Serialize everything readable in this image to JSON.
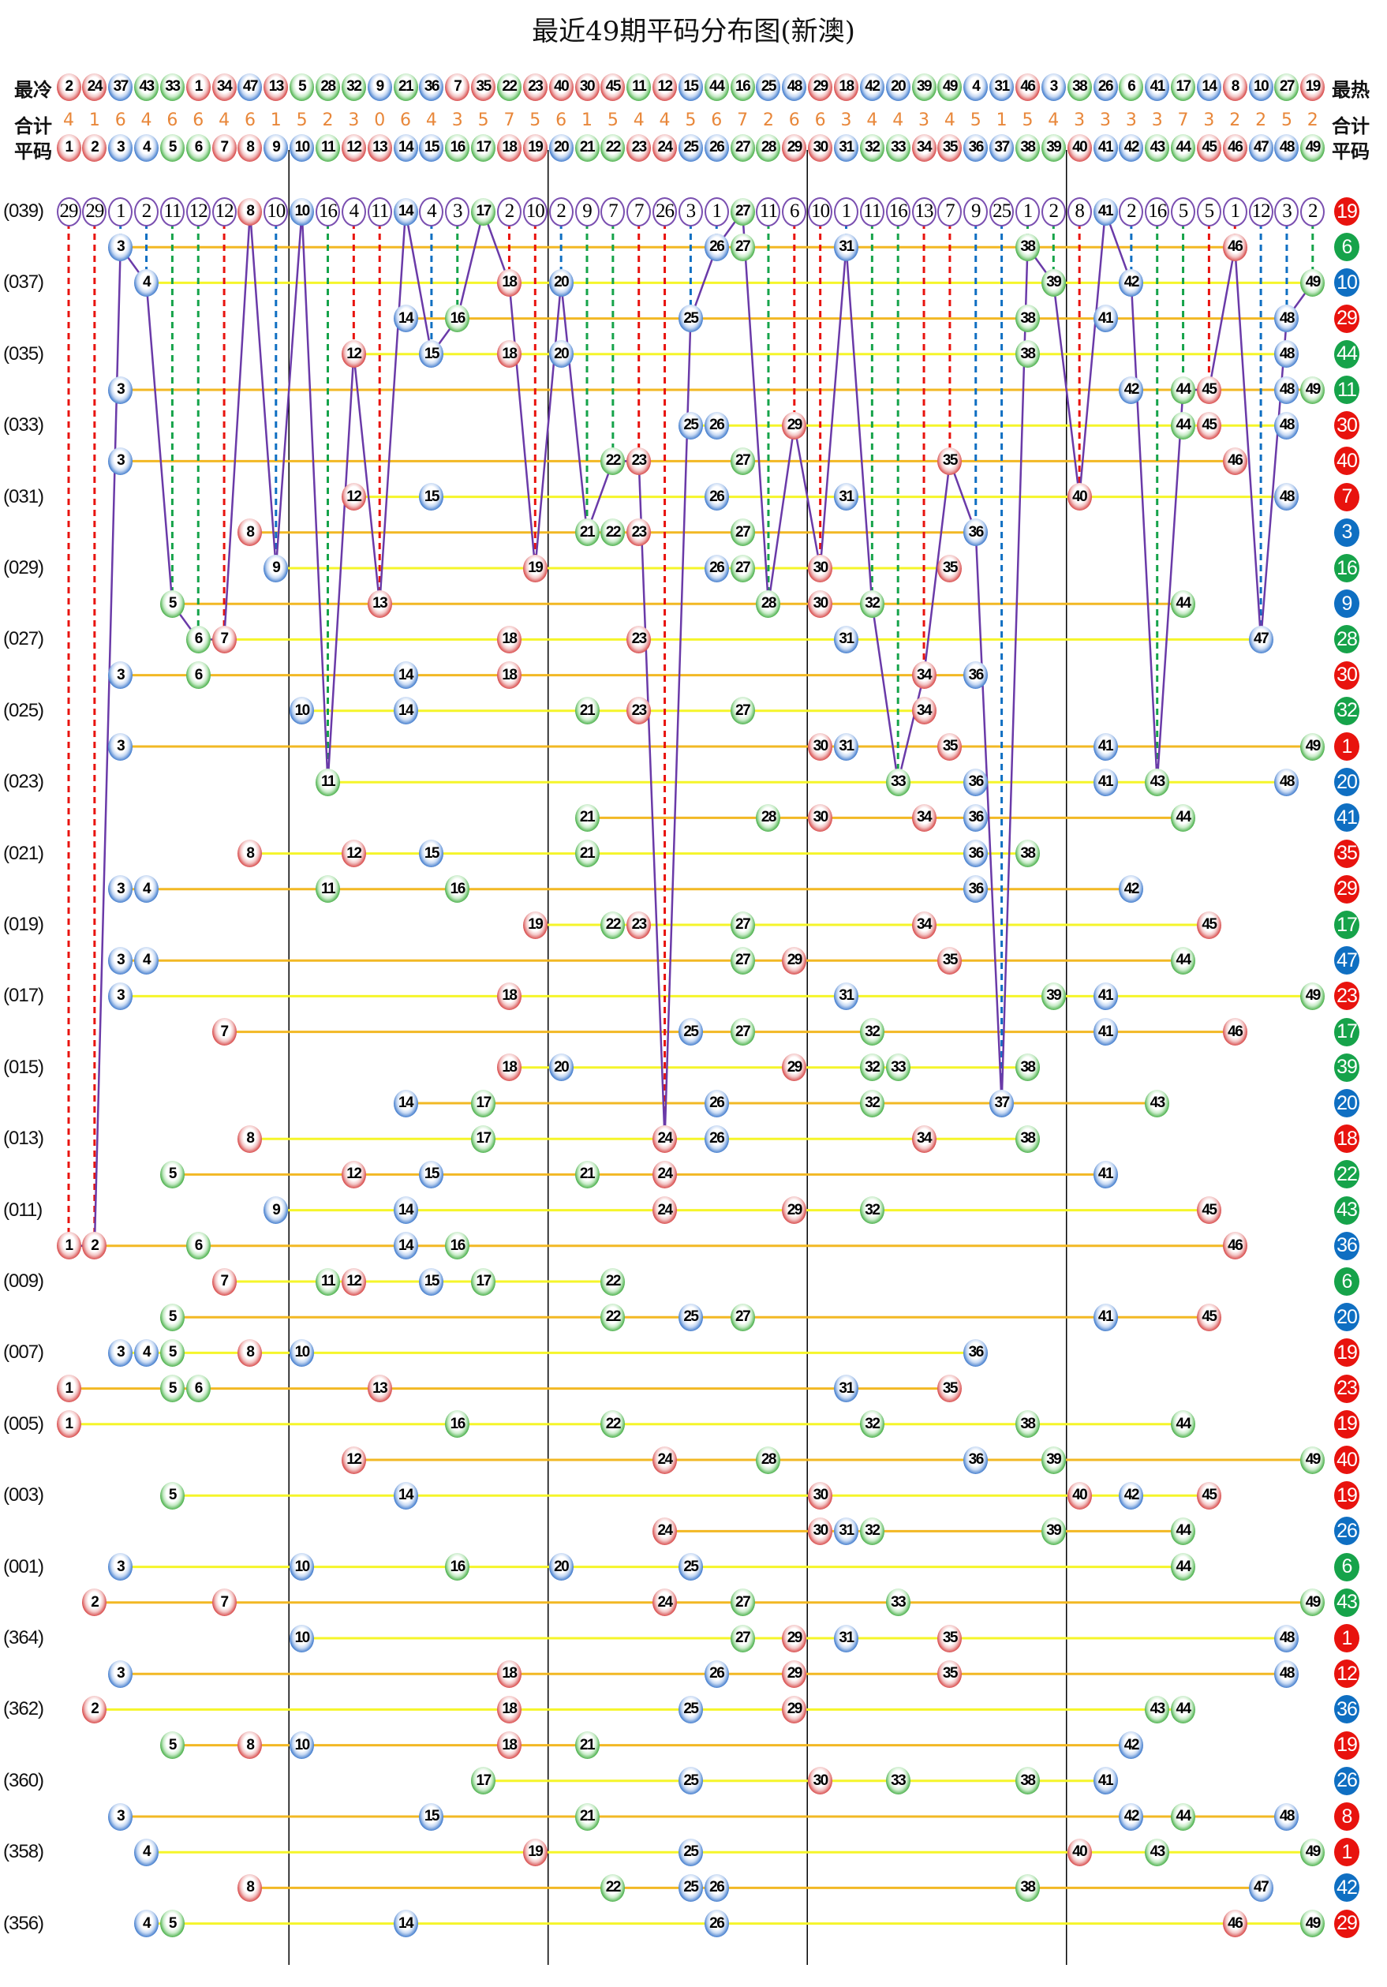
{
  "title": "最近49期平码分布图(新澳)",
  "labels": {
    "cold": "最冷",
    "hot": "最热",
    "count": "合计",
    "plain": "平码"
  },
  "colors": {
    "red": "#e8130e",
    "blue": "#0f6fc2",
    "green": "#16a34a",
    "omission_border": "#7a4fb0",
    "trend_line": "#6a3aa8",
    "row_line_a": "#f2b824",
    "row_line_b": "#f5f52a",
    "count_text": "#e8873a"
  },
  "number_colors": {
    "red": [
      1,
      2,
      7,
      8,
      12,
      13,
      18,
      19,
      23,
      24,
      29,
      30,
      34,
      35,
      40,
      45,
      46
    ],
    "blue": [
      3,
      4,
      9,
      10,
      14,
      15,
      20,
      25,
      26,
      31,
      36,
      37,
      41,
      42,
      47,
      48
    ],
    "green": [
      5,
      6,
      11,
      16,
      17,
      21,
      22,
      27,
      28,
      32,
      33,
      38,
      39,
      43,
      44,
      49
    ]
  },
  "cold_to_hot": [
    2,
    24,
    37,
    43,
    33,
    1,
    34,
    47,
    13,
    5,
    28,
    32,
    9,
    21,
    36,
    7,
    35,
    22,
    23,
    40,
    30,
    45,
    11,
    12,
    15,
    44,
    16,
    25,
    48,
    29,
    18,
    42,
    20,
    39,
    49,
    4,
    31,
    46,
    3,
    38,
    26,
    6,
    41,
    17,
    14,
    8,
    10,
    27,
    19
  ],
  "counts": [
    4,
    1,
    6,
    4,
    6,
    6,
    4,
    6,
    1,
    5,
    2,
    3,
    0,
    6,
    4,
    3,
    5,
    7,
    5,
    6,
    1,
    5,
    4,
    4,
    5,
    6,
    7,
    2,
    6,
    6,
    3,
    4,
    4,
    3,
    4,
    5,
    1,
    5,
    4,
    3,
    3,
    3,
    3,
    7,
    3,
    2,
    2,
    5,
    2
  ],
  "plain_numbers": [
    1,
    2,
    3,
    4,
    5,
    6,
    7,
    8,
    9,
    10,
    11,
    12,
    13,
    14,
    15,
    16,
    17,
    18,
    19,
    20,
    21,
    22,
    23,
    24,
    25,
    26,
    27,
    28,
    29,
    30,
    31,
    32,
    33,
    34,
    35,
    36,
    37,
    38,
    39,
    40,
    41,
    42,
    43,
    44,
    45,
    46,
    47,
    48,
    49
  ],
  "chart_data": {
    "type": "table",
    "first_row_omissions": [
      29,
      29,
      1,
      2,
      11,
      12,
      12,
      0,
      10,
      0,
      16,
      4,
      11,
      0,
      4,
      3,
      0,
      2,
      10,
      2,
      9,
      7,
      7,
      26,
      3,
      1,
      0,
      11,
      6,
      10,
      1,
      11,
      16,
      13,
      7,
      9,
      25,
      1,
      2,
      8,
      0,
      2,
      16,
      5,
      5,
      1,
      12,
      3,
      2
    ],
    "rows": [
      {
        "label": "(039)",
        "balls": [
          8,
          10,
          14,
          17,
          27,
          41
        ],
        "special": 19
      },
      {
        "label": "",
        "balls": [
          3,
          26,
          27,
          31,
          38,
          46
        ],
        "special": 6
      },
      {
        "label": "(037)",
        "balls": [
          4,
          18,
          20,
          39,
          42,
          49
        ],
        "special": 10
      },
      {
        "label": "",
        "balls": [
          14,
          16,
          25,
          38,
          41,
          48
        ],
        "special": 29
      },
      {
        "label": "(035)",
        "balls": [
          12,
          15,
          18,
          20,
          38,
          48
        ],
        "special": 44
      },
      {
        "label": "",
        "balls": [
          3,
          42,
          44,
          45,
          48,
          49
        ],
        "special": 11
      },
      {
        "label": "(033)",
        "balls": [
          25,
          26,
          29,
          44,
          45,
          48
        ],
        "special": 30
      },
      {
        "label": "",
        "balls": [
          3,
          22,
          23,
          27,
          35,
          46
        ],
        "special": 40
      },
      {
        "label": "(031)",
        "balls": [
          12,
          15,
          26,
          31,
          40,
          48
        ],
        "special": 7
      },
      {
        "label": "",
        "balls": [
          8,
          21,
          22,
          23,
          27,
          36
        ],
        "special": 3
      },
      {
        "label": "(029)",
        "balls": [
          9,
          19,
          26,
          27,
          30,
          35
        ],
        "special": 16
      },
      {
        "label": "",
        "balls": [
          5,
          13,
          28,
          30,
          32,
          44
        ],
        "special": 9
      },
      {
        "label": "(027)",
        "balls": [
          6,
          7,
          18,
          23,
          31,
          47
        ],
        "special": 28
      },
      {
        "label": "",
        "balls": [
          3,
          6,
          14,
          18,
          34,
          36
        ],
        "special": 30
      },
      {
        "label": "(025)",
        "balls": [
          10,
          14,
          21,
          23,
          27,
          34
        ],
        "special": 32
      },
      {
        "label": "",
        "balls": [
          3,
          30,
          31,
          35,
          41,
          49
        ],
        "special": 1
      },
      {
        "label": "(023)",
        "balls": [
          11,
          33,
          36,
          41,
          43,
          48
        ],
        "special": 20
      },
      {
        "label": "",
        "balls": [
          21,
          28,
          30,
          34,
          36,
          44
        ],
        "special": 41
      },
      {
        "label": "(021)",
        "balls": [
          8,
          12,
          15,
          21,
          36,
          38
        ],
        "special": 35
      },
      {
        "label": "",
        "balls": [
          3,
          4,
          11,
          16,
          36,
          42
        ],
        "special": 29
      },
      {
        "label": "(019)",
        "balls": [
          19,
          22,
          23,
          27,
          34,
          45
        ],
        "special": 17
      },
      {
        "label": "",
        "balls": [
          3,
          4,
          27,
          29,
          35,
          44
        ],
        "special": 47
      },
      {
        "label": "(017)",
        "balls": [
          3,
          18,
          31,
          39,
          41,
          49
        ],
        "special": 23
      },
      {
        "label": "",
        "balls": [
          7,
          25,
          27,
          32,
          41,
          46
        ],
        "special": 17
      },
      {
        "label": "(015)",
        "balls": [
          18,
          20,
          29,
          32,
          33,
          38
        ],
        "special": 39
      },
      {
        "label": "",
        "balls": [
          14,
          17,
          26,
          32,
          37,
          43
        ],
        "special": 20
      },
      {
        "label": "(013)",
        "balls": [
          8,
          17,
          24,
          26,
          34,
          38
        ],
        "special": 18
      },
      {
        "label": "",
        "balls": [
          5,
          12,
          15,
          21,
          24,
          41
        ],
        "special": 22
      },
      {
        "label": "(011)",
        "balls": [
          9,
          14,
          24,
          29,
          32,
          45
        ],
        "special": 43
      },
      {
        "label": "",
        "balls": [
          1,
          2,
          6,
          14,
          16,
          46
        ],
        "special": 36
      },
      {
        "label": "(009)",
        "balls": [
          7,
          11,
          12,
          15,
          17,
          22
        ],
        "special": 6
      },
      {
        "label": "",
        "balls": [
          5,
          22,
          25,
          27,
          41,
          45
        ],
        "special": 20
      },
      {
        "label": "(007)",
        "balls": [
          3,
          4,
          5,
          8,
          10,
          36
        ],
        "special": 19
      },
      {
        "label": "",
        "balls": [
          1,
          5,
          6,
          13,
          31,
          35
        ],
        "special": 23
      },
      {
        "label": "(005)",
        "balls": [
          1,
          16,
          22,
          32,
          38,
          44
        ],
        "special": 19
      },
      {
        "label": "",
        "balls": [
          12,
          24,
          28,
          36,
          39,
          49
        ],
        "special": 40
      },
      {
        "label": "(003)",
        "balls": [
          5,
          14,
          30,
          40,
          42,
          45
        ],
        "special": 19
      },
      {
        "label": "",
        "balls": [
          24,
          30,
          31,
          32,
          39,
          44
        ],
        "special": 26
      },
      {
        "label": "(001)",
        "balls": [
          3,
          10,
          16,
          20,
          25,
          44
        ],
        "special": 6
      },
      {
        "label": "",
        "balls": [
          2,
          7,
          24,
          27,
          33,
          49
        ],
        "special": 43
      },
      {
        "label": "(364)",
        "balls": [
          10,
          27,
          29,
          31,
          35,
          48
        ],
        "special": 1
      },
      {
        "label": "",
        "balls": [
          3,
          18,
          26,
          29,
          35,
          48
        ],
        "special": 12
      },
      {
        "label": "(362)",
        "balls": [
          2,
          18,
          25,
          29,
          43,
          44
        ],
        "special": 36
      },
      {
        "label": "",
        "balls": [
          5,
          8,
          10,
          18,
          21,
          42
        ],
        "special": 19
      },
      {
        "label": "(360)",
        "balls": [
          17,
          25,
          30,
          33,
          38,
          41
        ],
        "special": 26
      },
      {
        "label": "",
        "balls": [
          3,
          15,
          21,
          42,
          44,
          48
        ],
        "special": 8
      },
      {
        "label": "(358)",
        "balls": [
          4,
          19,
          25,
          40,
          43,
          49
        ],
        "special": 1
      },
      {
        "label": "",
        "balls": [
          8,
          22,
          25,
          26,
          38,
          47
        ],
        "special": 42
      },
      {
        "label": "(356)",
        "balls": [
          4,
          5,
          14,
          26,
          46,
          49
        ],
        "special": 29
      }
    ]
  }
}
